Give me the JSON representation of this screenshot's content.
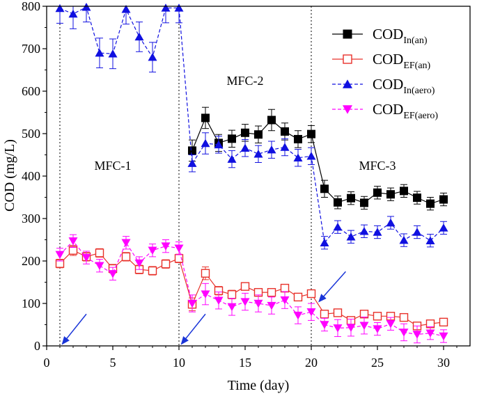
{
  "chart_data": {
    "type": "line",
    "xlabel": "Time (day)",
    "ylabel": "COD (mg/L)",
    "xlim": [
      0,
      32
    ],
    "ylim": [
      0,
      800
    ],
    "xticks": [
      0,
      5,
      10,
      15,
      20,
      25,
      30
    ],
    "yticks": [
      0,
      100,
      200,
      300,
      400,
      500,
      600,
      700,
      800
    ],
    "phase_lines": [
      1,
      10,
      20
    ],
    "phase_labels": [
      {
        "text": "MFC-1",
        "x": 5,
        "y": 415
      },
      {
        "text": "MFC-2",
        "x": 15,
        "y": 615
      },
      {
        "text": "MFC-3",
        "x": 25,
        "y": 415
      }
    ],
    "arrows": [
      {
        "from": [
          3,
          75
        ],
        "to": [
          1.2,
          5
        ]
      },
      {
        "from": [
          12,
          75
        ],
        "to": [
          10.2,
          5
        ]
      },
      {
        "from": [
          22.6,
          175
        ],
        "to": [
          20.6,
          105
        ]
      }
    ],
    "series": [
      {
        "name": "COD",
        "sub": "In(an)",
        "color": "#000000",
        "marker": "square-filled",
        "dash": "solid",
        "x": [
          11,
          12,
          13,
          14,
          15,
          16,
          17,
          18,
          19,
          20,
          21,
          22,
          23,
          24,
          25,
          26,
          27,
          28,
          29,
          30
        ],
        "values": [
          460,
          537,
          478,
          488,
          502,
          498,
          532,
          505,
          487,
          499,
          370,
          338,
          348,
          337,
          361,
          357,
          365,
          349,
          335,
          345
        ],
        "errors": [
          25,
          25,
          20,
          20,
          20,
          20,
          25,
          20,
          20,
          20,
          20,
          15,
          15,
          15,
          15,
          15,
          15,
          15,
          15,
          15
        ]
      },
      {
        "name": "COD",
        "sub": "EF(an)",
        "color": "#e8312a",
        "marker": "square-open",
        "dash": "solid",
        "x": [
          1,
          2,
          3,
          4,
          5,
          6,
          7,
          8,
          9,
          10,
          11,
          12,
          13,
          14,
          15,
          16,
          17,
          18,
          19,
          20,
          21,
          22,
          23,
          24,
          25,
          26,
          27,
          28,
          29,
          30
        ],
        "values": [
          194,
          225,
          210,
          219,
          182,
          210,
          180,
          177,
          193,
          206,
          98,
          171,
          130,
          121,
          140,
          126,
          126,
          136,
          115,
          123,
          75,
          78,
          60,
          75,
          70,
          70,
          67,
          47,
          52,
          56
        ],
        "errors": [
          10,
          12,
          10,
          10,
          10,
          10,
          10,
          10,
          10,
          10,
          15,
          15,
          10,
          10,
          8,
          8,
          8,
          8,
          8,
          8,
          8,
          8,
          8,
          8,
          8,
          8,
          8,
          8,
          8,
          8
        ]
      },
      {
        "name": "COD",
        "sub": "In(aero)",
        "color": "#1010e0",
        "marker": "triangle-up",
        "dash": "dash",
        "x": [
          1,
          2,
          3,
          4,
          5,
          6,
          7,
          8,
          9,
          10,
          11,
          12,
          13,
          14,
          15,
          16,
          17,
          18,
          19,
          20,
          21,
          22,
          23,
          24,
          25,
          26,
          27,
          28,
          29,
          30
        ],
        "values": [
          795,
          782,
          798,
          690,
          688,
          793,
          728,
          680,
          796,
          796,
          430,
          477,
          474,
          440,
          466,
          452,
          462,
          468,
          443,
          447,
          243,
          280,
          257,
          270,
          268,
          290,
          249,
          268,
          248,
          278
        ],
        "errors": [
          35,
          35,
          35,
          35,
          35,
          35,
          35,
          35,
          35,
          35,
          20,
          25,
          20,
          20,
          20,
          20,
          20,
          20,
          20,
          20,
          15,
          15,
          15,
          15,
          15,
          15,
          15,
          15,
          15,
          15
        ]
      },
      {
        "name": "COD",
        "sub": "EF(aero)",
        "color": "#ff00ff",
        "marker": "triangle-down",
        "dash": "dash",
        "x": [
          1,
          2,
          3,
          4,
          5,
          6,
          7,
          8,
          9,
          10,
          11,
          12,
          13,
          14,
          15,
          16,
          17,
          18,
          19,
          20,
          21,
          22,
          23,
          24,
          25,
          26,
          27,
          28,
          29,
          30
        ],
        "values": [
          215,
          247,
          208,
          189,
          170,
          243,
          195,
          225,
          235,
          230,
          100,
          122,
          107,
          92,
          104,
          100,
          95,
          108,
          72,
          80,
          50,
          42,
          43,
          48,
          40,
          52,
          32,
          27,
          30,
          23
        ],
        "errors": [
          15,
          15,
          15,
          15,
          15,
          15,
          15,
          15,
          15,
          15,
          20,
          25,
          20,
          20,
          20,
          20,
          20,
          20,
          20,
          20,
          15,
          20,
          20,
          20,
          15,
          15,
          20,
          20,
          15,
          15
        ]
      }
    ]
  }
}
